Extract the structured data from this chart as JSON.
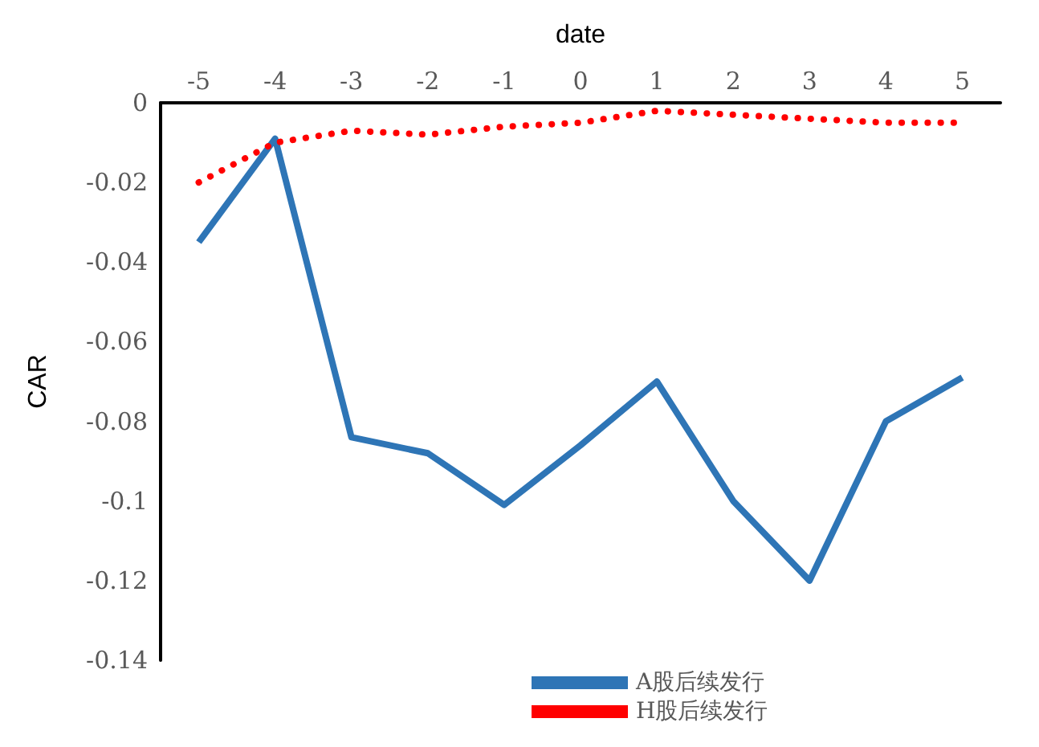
{
  "chart_data": {
    "type": "line",
    "xlabel": "date",
    "ylabel": "CAR",
    "categories": [
      "-5",
      "-4",
      "-3",
      "-2",
      "-1",
      "0",
      "1",
      "2",
      "3",
      "4",
      "5"
    ],
    "series": [
      {
        "name": "A股后续发行",
        "color": "#2e75b6",
        "line_style": "solid",
        "values": [
          -0.035,
          -0.009,
          -0.084,
          -0.088,
          -0.101,
          -0.086,
          -0.07,
          -0.1,
          -0.12,
          -0.08,
          -0.069
        ]
      },
      {
        "name": "H股后续发行",
        "color": "#ff0000",
        "line_style": "dotted",
        "values": [
          -0.02,
          -0.01,
          -0.007,
          -0.008,
          -0.006,
          -0.005,
          -0.002,
          -0.003,
          -0.004,
          -0.005,
          -0.005
        ]
      }
    ],
    "ylim": [
      -0.14,
      0
    ],
    "yticks": [
      -0.14,
      -0.12,
      -0.1,
      -0.08,
      -0.06,
      -0.04,
      -0.02,
      0
    ],
    "grid": false,
    "legend": "bottom",
    "marker": "none"
  }
}
